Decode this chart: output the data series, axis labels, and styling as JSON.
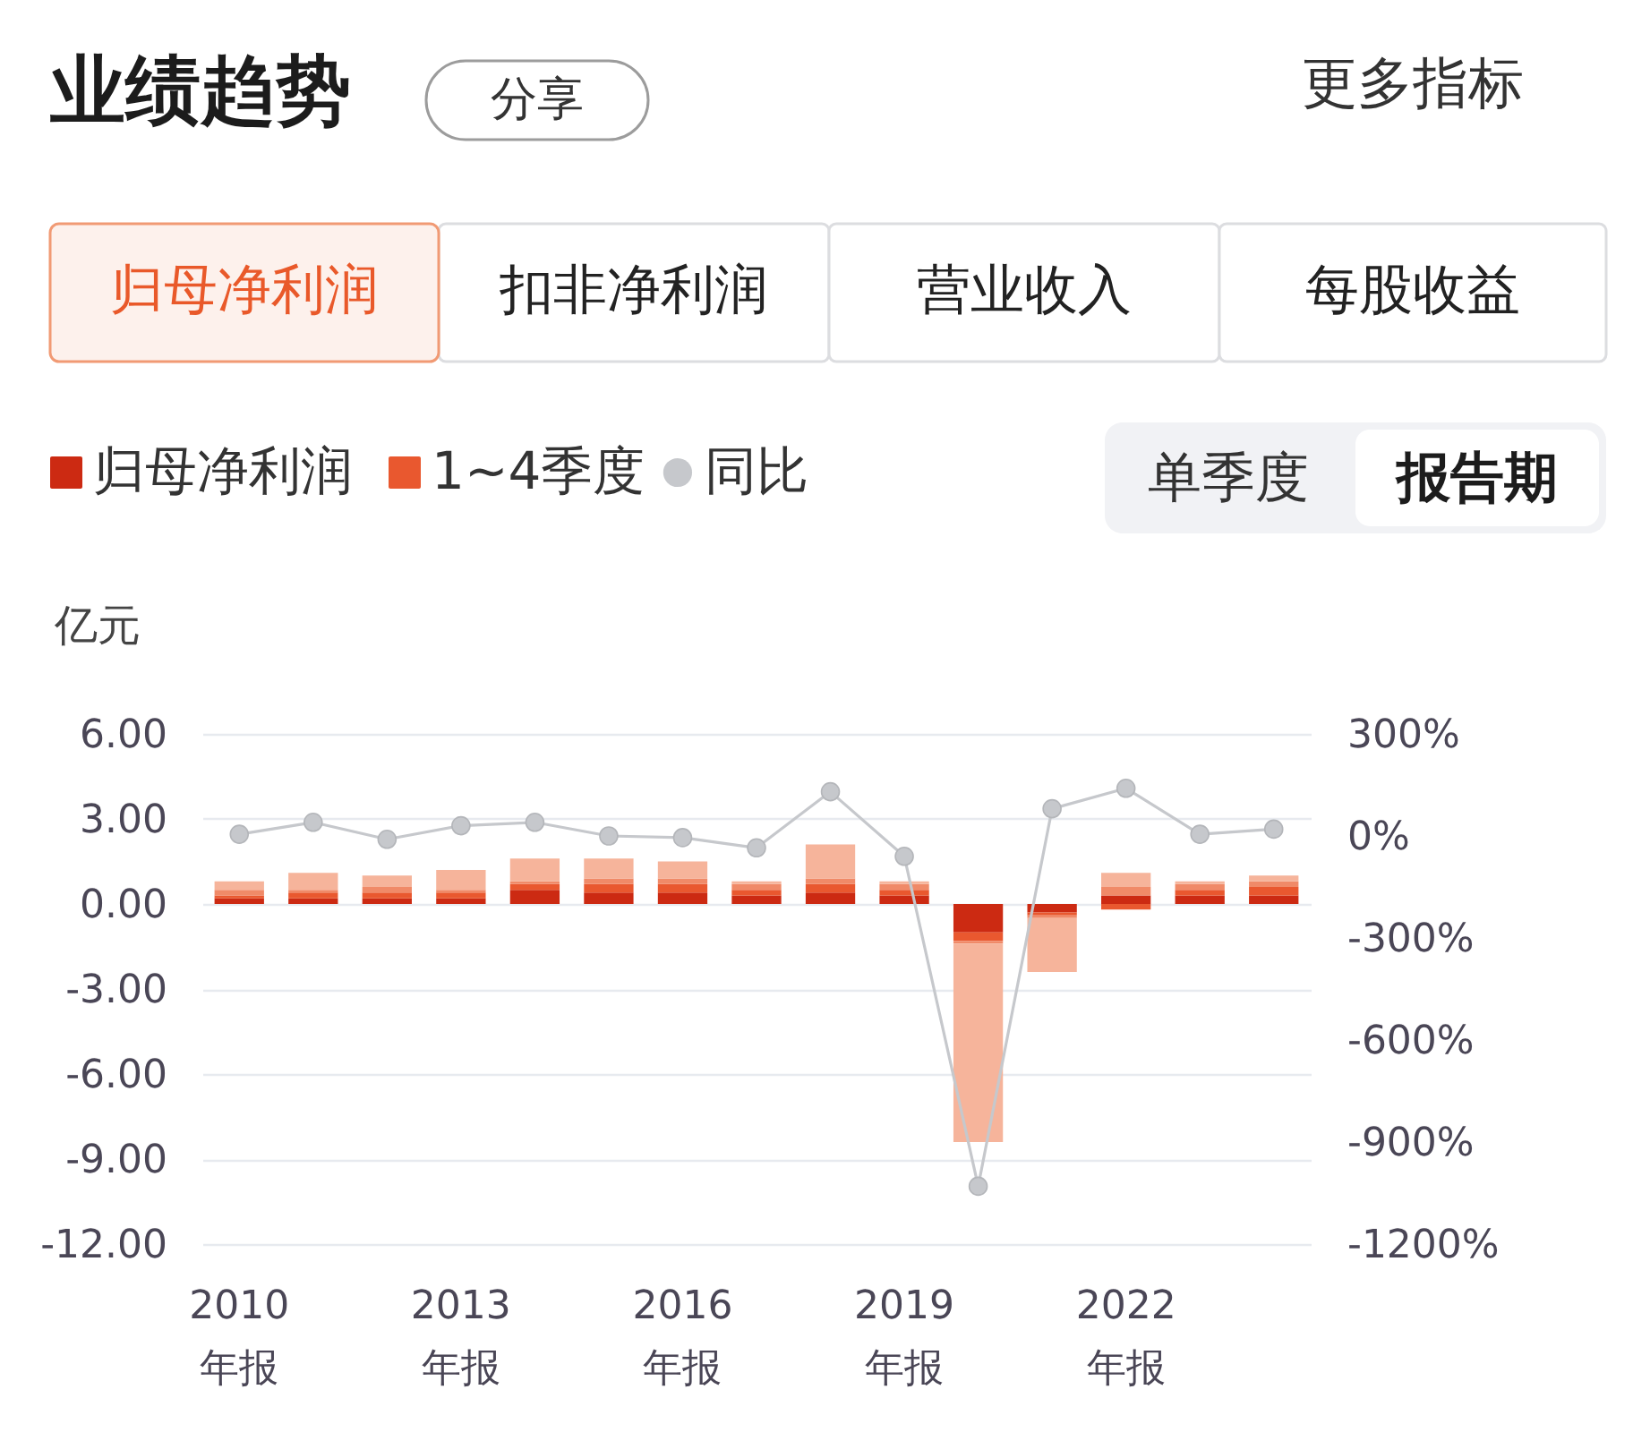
{
  "chart_data": {
    "type": "bar",
    "title": "业绩趋势",
    "ylabel": "亿元",
    "categories": [
      "2010\n年报",
      null,
      null,
      "2013\n年报",
      null,
      null,
      "2016\n年报",
      null,
      null,
      "2019\n年报",
      null,
      null,
      "2022\n年报",
      null,
      null
    ],
    "stacked": true,
    "series": [
      {
        "name": "归母净利润",
        "color": "#cc2a12",
        "values": [
          0.2,
          0.2,
          0.2,
          0.2,
          0.5,
          0.4,
          0.4,
          0.3,
          0.4,
          0.3,
          -1.0,
          -0.3,
          0.3,
          0.3,
          0.3
        ]
      },
      {
        "name": "1~4季度",
        "color": "#e9582f",
        "values": [
          0.1,
          0.2,
          0.2,
          0.2,
          0.2,
          0.3,
          0.3,
          0.2,
          0.3,
          0.2,
          -0.3,
          -0.1,
          -0.2,
          0.2,
          0.3
        ]
      },
      {
        "color": "#f08a68",
        "values": [
          0.2,
          0.1,
          0.2,
          0.1,
          0.1,
          0.2,
          0.2,
          0.2,
          0.2,
          0.2,
          -0.1,
          -0.1,
          0.3,
          0.2,
          0.2
        ]
      },
      {
        "color": "#f6b49b",
        "values": [
          0.3,
          0.6,
          0.4,
          0.7,
          0.8,
          0.7,
          0.6,
          0.1,
          1.2,
          0.1,
          -7.0,
          -1.9,
          0.5,
          0.1,
          0.2
        ]
      },
      {
        "name": "同比",
        "type": "line",
        "axis": "y2",
        "color": "#c6c8cc",
        "values": [
          5,
          40,
          -10,
          30,
          40,
          0,
          -5,
          -35,
          130,
          -60,
          -1030,
          80,
          140,
          5,
          20
        ]
      }
    ],
    "ylim": [
      -12,
      6
    ],
    "yticks": [
      {
        "value": 6,
        "label": "6.00"
      },
      {
        "value": 3,
        "label": "3.00"
      },
      {
        "value": 0,
        "label": "0.00"
      },
      {
        "value": -3,
        "label": "-3.00"
      },
      {
        "value": -6,
        "label": "-6.00"
      },
      {
        "value": -9,
        "label": "-9.00"
      },
      {
        "value": -12,
        "label": "-12.00"
      }
    ],
    "y2lim": [
      -1200,
      300
    ],
    "y2ticks": [
      {
        "value": 300,
        "label": "300%"
      },
      {
        "value": 0,
        "label": "0%"
      },
      {
        "value": -300,
        "label": "-300%"
      },
      {
        "value": -600,
        "label": "-600%"
      },
      {
        "value": -900,
        "label": "-900%"
      },
      {
        "value": -1200,
        "label": "-1200%"
      }
    ],
    "grid": "y",
    "legend": "top left",
    "marker": "circle",
    "annotations": [
      "分享",
      "更多指标",
      "归母净利润",
      "扣非净利润",
      "营业收入",
      "每股收益",
      "单季度",
      "报告期"
    ]
  }
}
